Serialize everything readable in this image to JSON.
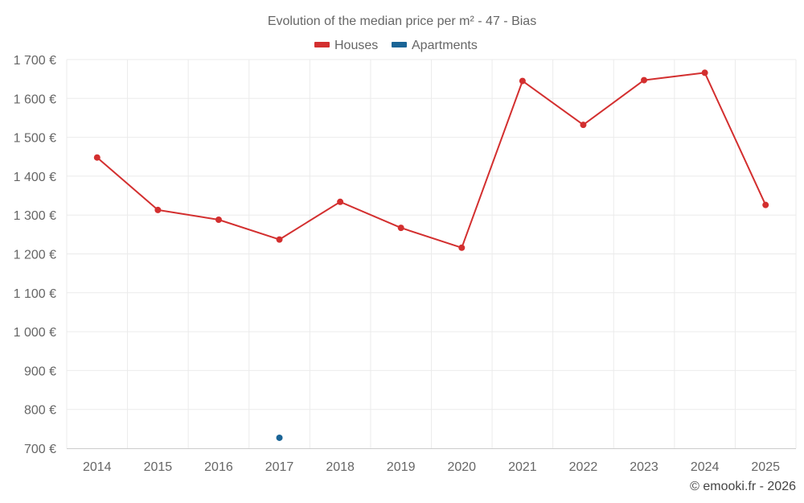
{
  "chart_data": {
    "type": "line",
    "title": "Evolution of the median price per m² - 47 - Bias",
    "xlabel": "",
    "ylabel": "",
    "categories": [
      "2014",
      "2015",
      "2016",
      "2017",
      "2018",
      "2019",
      "2020",
      "2021",
      "2022",
      "2023",
      "2024",
      "2025"
    ],
    "ylim": [
      700,
      1700
    ],
    "yticks": [
      700,
      800,
      900,
      1000,
      1100,
      1200,
      1300,
      1400,
      1500,
      1600,
      1700
    ],
    "ytick_labels": [
      "700 €",
      "800 €",
      "900 €",
      "1 000 €",
      "1 100 €",
      "1 200 €",
      "1 300 €",
      "1 400 €",
      "1 500 €",
      "1 600 €",
      "1 700 €"
    ],
    "grid": true,
    "legend_position": "top-center",
    "series": [
      {
        "name": "Houses",
        "color": "#d32f2f",
        "values": [
          1448,
          1313,
          1288,
          1237,
          1334,
          1267,
          1216,
          1645,
          1532,
          1647,
          1666,
          1326
        ]
      },
      {
        "name": "Apartments",
        "color": "#1a6496",
        "values": [
          null,
          null,
          null,
          727,
          null,
          null,
          null,
          null,
          null,
          null,
          null,
          null
        ]
      }
    ]
  },
  "credit": "© emooki.fr - 2026"
}
